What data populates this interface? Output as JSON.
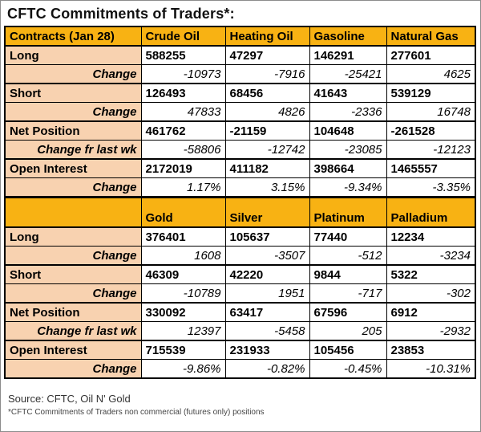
{
  "title": "CFTC Commitments of Traders*:",
  "colors": {
    "header_bg": "#f8b213",
    "label_bg": "#f8d2b0",
    "positive_text": "#008f00",
    "negative_text": "#ec0000",
    "border": "#000000"
  },
  "chart_data": [
    {
      "type": "table",
      "header": [
        "Contracts (Jan 28)",
        "Crude Oil",
        "Heating Oil",
        "Gasoline",
        "Natural Gas"
      ],
      "rows": [
        {
          "label": "Long",
          "style": "value",
          "values": [
            "588255",
            "47297",
            "146291",
            "277601"
          ]
        },
        {
          "label": "Change",
          "style": "change",
          "values": [
            "-10973",
            "-7916",
            "-25421",
            "4625"
          ]
        },
        {
          "label": "Short",
          "style": "value",
          "values": [
            "126493",
            "68456",
            "41643",
            "539129"
          ]
        },
        {
          "label": "Change",
          "style": "change",
          "values": [
            "47833",
            "4826",
            "-2336",
            "16748"
          ]
        },
        {
          "label": "Net Position",
          "style": "net",
          "values": [
            "461762",
            "-21159",
            "104648",
            "-261528"
          ]
        },
        {
          "label": "Change fr last wk",
          "style": "change",
          "values": [
            "-58806",
            "-12742",
            "-23085",
            "-12123"
          ]
        },
        {
          "label": "Open Interest",
          "style": "value",
          "values": [
            "2172019",
            "411182",
            "398664",
            "1465557"
          ]
        },
        {
          "label": "Change",
          "style": "change",
          "values": [
            "1.17%",
            "3.15%",
            "-9.34%",
            "-3.35%"
          ]
        }
      ]
    },
    {
      "type": "table",
      "header": [
        "",
        "Gold",
        "Silver",
        "Platinum",
        "Palladium"
      ],
      "rows": [
        {
          "label": "Long",
          "style": "value",
          "values": [
            "376401",
            "105637",
            "77440",
            "12234"
          ]
        },
        {
          "label": "Change",
          "style": "change",
          "values": [
            "1608",
            "-3507",
            "-512",
            "-3234"
          ]
        },
        {
          "label": "Short",
          "style": "value",
          "values": [
            "46309",
            "42220",
            "9844",
            "5322"
          ]
        },
        {
          "label": "Change",
          "style": "change",
          "values": [
            "-10789",
            "1951",
            "-717",
            "-302"
          ]
        },
        {
          "label": "Net Position",
          "style": "net",
          "values": [
            "330092",
            "63417",
            "67596",
            "6912"
          ]
        },
        {
          "label": "Change fr last wk",
          "style": "change",
          "values": [
            "12397",
            "-5458",
            "205",
            "-2932"
          ]
        },
        {
          "label": "Open Interest",
          "style": "value",
          "values": [
            "715539",
            "231933",
            "105456",
            "23853"
          ]
        },
        {
          "label": "Change",
          "style": "change",
          "values": [
            "-9.86%",
            "-0.82%",
            "-0.45%",
            "-10.31%"
          ]
        }
      ]
    }
  ],
  "footer": {
    "source": "Source: CFTC, Oil N' Gold",
    "footnote": "*CFTC Commitments of Traders non commercial (futures only) positions"
  }
}
